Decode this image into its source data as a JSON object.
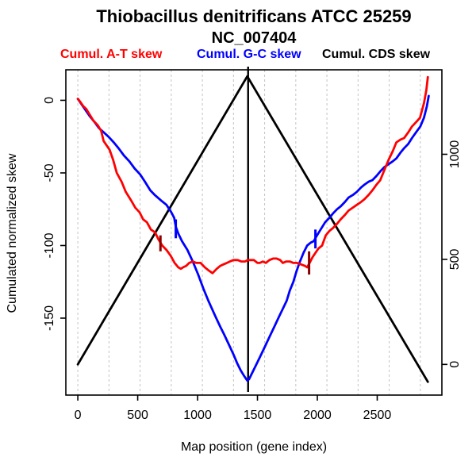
{
  "title": "Thiobacillus denitrificans ATCC 25259",
  "subtitle": "NC_007404",
  "legend": [
    {
      "label": "Cumul. A-T skew",
      "color": "#ff0000"
    },
    {
      "label": "Cumul. G-C skew",
      "color": "#0000ff"
    },
    {
      "label": "Cumul. CDS skew",
      "color": "#000000"
    }
  ],
  "axes": {
    "xlabel": "Map position (gene index)",
    "ylabel_left": "Cumulated normalized skew"
  },
  "chart_data": {
    "type": "line",
    "title": "Thiobacillus denitrificans ATCC 25259",
    "subtitle": "NC_007404",
    "xlabel": "Map position (gene index)",
    "ylabel": "Cumulated normalized skew",
    "x_ticks": [
      0,
      500,
      1000,
      1500,
      2000,
      2500
    ],
    "y_left_ticks": [
      0,
      -50,
      -100,
      -150
    ],
    "y_right_ticks": [
      0,
      500,
      1000
    ],
    "x_domain": [
      -100,
      3040
    ],
    "y_left_domain": [
      -203,
      21
    ],
    "y_right_domain": [
      -146,
      1402
    ],
    "gridlines_x": [
      0,
      260,
      520,
      780,
      1040,
      1300,
      1560,
      1820,
      2080,
      2340,
      2600,
      2860
    ],
    "grid_color": "#c3c3c3",
    "vertical_line_x": 1422,
    "series": [
      {
        "name": "Cumul. A-T skew",
        "color": "#ff0000",
        "axis": "left",
        "points": [
          [
            0,
            1
          ],
          [
            20,
            -1
          ],
          [
            45,
            -4
          ],
          [
            70,
            -6
          ],
          [
            100,
            -10
          ],
          [
            130,
            -14
          ],
          [
            165,
            -17
          ],
          [
            195,
            -21
          ],
          [
            215,
            -28
          ],
          [
            240,
            -31
          ],
          [
            265,
            -34
          ],
          [
            295,
            -41
          ],
          [
            325,
            -50
          ],
          [
            365,
            -56
          ],
          [
            400,
            -63
          ],
          [
            445,
            -69
          ],
          [
            480,
            -74
          ],
          [
            515,
            -77
          ],
          [
            545,
            -82
          ],
          [
            577,
            -84
          ],
          [
            610,
            -89
          ],
          [
            645,
            -91
          ],
          [
            675,
            -96
          ],
          [
            705,
            -100
          ],
          [
            740,
            -103
          ],
          [
            775,
            -107
          ],
          [
            808,
            -112
          ],
          [
            838,
            -115
          ],
          [
            860,
            -116
          ],
          [
            880,
            -115
          ],
          [
            905,
            -114
          ],
          [
            930,
            -112
          ],
          [
            960,
            -111
          ],
          [
            990,
            -112
          ],
          [
            1025,
            -112
          ],
          [
            1060,
            -115
          ],
          [
            1090,
            -117
          ],
          [
            1125,
            -119
          ],
          [
            1160,
            -116
          ],
          [
            1190,
            -114
          ],
          [
            1215,
            -113
          ],
          [
            1245,
            -112
          ],
          [
            1270,
            -111
          ],
          [
            1300,
            -110
          ],
          [
            1335,
            -110
          ],
          [
            1365,
            -111
          ],
          [
            1395,
            -111
          ],
          [
            1420,
            -110
          ],
          [
            1445,
            -110
          ],
          [
            1470,
            -110
          ],
          [
            1500,
            -112
          ],
          [
            1520,
            -112
          ],
          [
            1545,
            -111
          ],
          [
            1570,
            -112
          ],
          [
            1600,
            -110
          ],
          [
            1630,
            -109
          ],
          [
            1660,
            -109
          ],
          [
            1690,
            -110
          ],
          [
            1712,
            -112
          ],
          [
            1740,
            -111
          ],
          [
            1770,
            -111
          ],
          [
            1800,
            -112
          ],
          [
            1830,
            -112
          ],
          [
            1865,
            -113
          ],
          [
            1895,
            -114
          ],
          [
            1915,
            -115
          ],
          [
            1935,
            -112
          ],
          [
            1960,
            -108
          ],
          [
            1985,
            -105
          ],
          [
            2010,
            -102
          ],
          [
            2040,
            -100
          ],
          [
            2070,
            -93
          ],
          [
            2100,
            -90
          ],
          [
            2130,
            -88
          ],
          [
            2165,
            -85
          ],
          [
            2195,
            -82
          ],
          [
            2230,
            -79
          ],
          [
            2260,
            -76
          ],
          [
            2295,
            -74
          ],
          [
            2330,
            -72
          ],
          [
            2365,
            -70
          ],
          [
            2395,
            -68
          ],
          [
            2430,
            -65
          ],
          [
            2460,
            -62
          ],
          [
            2495,
            -58
          ],
          [
            2525,
            -55
          ],
          [
            2560,
            -48
          ],
          [
            2595,
            -41
          ],
          [
            2630,
            -35
          ],
          [
            2660,
            -29
          ],
          [
            2695,
            -27
          ],
          [
            2725,
            -26
          ],
          [
            2760,
            -22
          ],
          [
            2790,
            -18
          ],
          [
            2825,
            -15
          ],
          [
            2857,
            -12
          ],
          [
            2890,
            -2
          ],
          [
            2910,
            7
          ],
          [
            2923,
            16
          ]
        ]
      },
      {
        "name": "Cumul. G-C skew",
        "color": "#0000ff",
        "axis": "left",
        "points": [
          [
            0,
            1
          ],
          [
            50,
            -5
          ],
          [
            100,
            -11
          ],
          [
            140,
            -15
          ],
          [
            175,
            -19
          ],
          [
            215,
            -22
          ],
          [
            255,
            -25
          ],
          [
            300,
            -29
          ],
          [
            340,
            -33
          ],
          [
            385,
            -38
          ],
          [
            430,
            -42
          ],
          [
            475,
            -47
          ],
          [
            520,
            -51
          ],
          [
            560,
            -56
          ],
          [
            605,
            -62
          ],
          [
            640,
            -65
          ],
          [
            695,
            -69
          ],
          [
            740,
            -72
          ],
          [
            780,
            -77
          ],
          [
            805,
            -81
          ],
          [
            818,
            -87
          ],
          [
            840,
            -92
          ],
          [
            870,
            -97
          ],
          [
            915,
            -103
          ],
          [
            960,
            -111
          ],
          [
            1005,
            -120
          ],
          [
            1050,
            -130
          ],
          [
            1090,
            -138
          ],
          [
            1150,
            -149
          ],
          [
            1190,
            -156
          ],
          [
            1220,
            -161
          ],
          [
            1260,
            -168
          ],
          [
            1300,
            -175
          ],
          [
            1330,
            -181
          ],
          [
            1360,
            -186
          ],
          [
            1390,
            -190
          ],
          [
            1415,
            -193
          ],
          [
            1430,
            -192
          ],
          [
            1460,
            -187
          ],
          [
            1490,
            -182
          ],
          [
            1520,
            -177
          ],
          [
            1560,
            -170
          ],
          [
            1600,
            -163
          ],
          [
            1640,
            -156
          ],
          [
            1680,
            -149
          ],
          [
            1715,
            -143
          ],
          [
            1744,
            -138
          ],
          [
            1770,
            -131
          ],
          [
            1800,
            -125
          ],
          [
            1825,
            -118
          ],
          [
            1850,
            -112
          ],
          [
            1885,
            -105
          ],
          [
            1915,
            -100
          ],
          [
            1945,
            -98
          ],
          [
            1970,
            -97
          ],
          [
            1990,
            -94
          ],
          [
            2020,
            -90
          ],
          [
            2065,
            -84
          ],
          [
            2100,
            -81
          ],
          [
            2130,
            -78
          ],
          [
            2165,
            -75
          ],
          [
            2195,
            -73
          ],
          [
            2230,
            -70
          ],
          [
            2260,
            -67
          ],
          [
            2300,
            -65
          ],
          [
            2330,
            -63
          ],
          [
            2365,
            -60
          ],
          [
            2395,
            -58
          ],
          [
            2430,
            -56
          ],
          [
            2460,
            -55
          ],
          [
            2495,
            -52
          ],
          [
            2525,
            -49
          ],
          [
            2560,
            -46
          ],
          [
            2595,
            -44
          ],
          [
            2630,
            -42
          ],
          [
            2660,
            -40
          ],
          [
            2695,
            -36
          ],
          [
            2725,
            -33
          ],
          [
            2760,
            -30
          ],
          [
            2790,
            -26
          ],
          [
            2825,
            -22
          ],
          [
            2860,
            -18
          ],
          [
            2890,
            -12
          ],
          [
            2915,
            -4
          ],
          [
            2930,
            3
          ]
        ]
      },
      {
        "name": "Cumul. CDS skew",
        "color": "#000000",
        "axis": "right",
        "points": [
          [
            0,
            0
          ],
          [
            1415,
            1371
          ],
          [
            2923,
            -83
          ]
        ]
      }
    ],
    "markers": [
      {
        "series": "Cumul. A-T skew",
        "color": "#8b0000",
        "x": 690,
        "y_from": -93,
        "y_to": -104
      },
      {
        "series": "Cumul. G-C skew",
        "color": "#0000ff",
        "x": 818,
        "y_from": -82,
        "y_to": -95
      },
      {
        "series": "Cumul. A-T skew",
        "color": "#8b0000",
        "x": 1931,
        "y_from": -104,
        "y_to": -120
      },
      {
        "series": "Cumul. G-C skew",
        "color": "#0000ff",
        "x": 1984,
        "y_from": -89,
        "y_to": -102
      }
    ],
    "legend_position": "top",
    "grid": "vertical-dashed"
  }
}
